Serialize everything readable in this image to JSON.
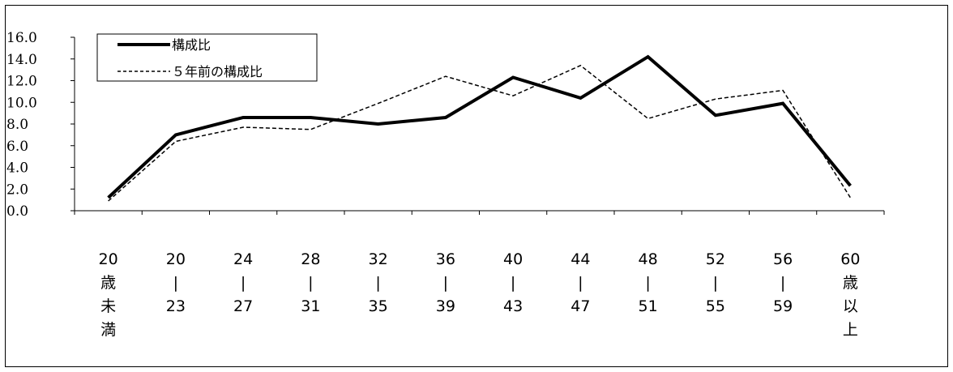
{
  "chart_data": {
    "type": "line",
    "title": "",
    "xlabel": "",
    "ylabel": "",
    "ylim": [
      0,
      16
    ],
    "yticks": [
      "0.0",
      "2.0",
      "4.0",
      "6.0",
      "8.0",
      "10.0",
      "12.0",
      "14.0",
      "16.0"
    ],
    "categories": [
      [
        "20",
        "歳",
        "未",
        "満"
      ],
      [
        "20",
        "|",
        "23"
      ],
      [
        "24",
        "|",
        "27"
      ],
      [
        "28",
        "|",
        "31"
      ],
      [
        "32",
        "|",
        "35"
      ],
      [
        "36",
        "|",
        "39"
      ],
      [
        "40",
        "|",
        "43"
      ],
      [
        "44",
        "|",
        "47"
      ],
      [
        "48",
        "|",
        "51"
      ],
      [
        "52",
        "|",
        "55"
      ],
      [
        "56",
        "|",
        "59"
      ],
      [
        "60",
        "歳",
        "以",
        "上"
      ]
    ],
    "series": [
      {
        "name": "構成比",
        "style": "solid-thick",
        "values": [
          1.2,
          7.0,
          8.6,
          8.6,
          8.0,
          8.6,
          12.3,
          10.4,
          14.2,
          8.8,
          9.9,
          2.3
        ]
      },
      {
        "name": "５年前の構成比",
        "style": "dashed",
        "values": [
          0.9,
          6.4,
          7.7,
          7.5,
          9.9,
          12.4,
          10.6,
          13.4,
          8.5,
          10.3,
          11.1,
          1.2
        ]
      }
    ],
    "grid": false,
    "legend": "top-left"
  }
}
